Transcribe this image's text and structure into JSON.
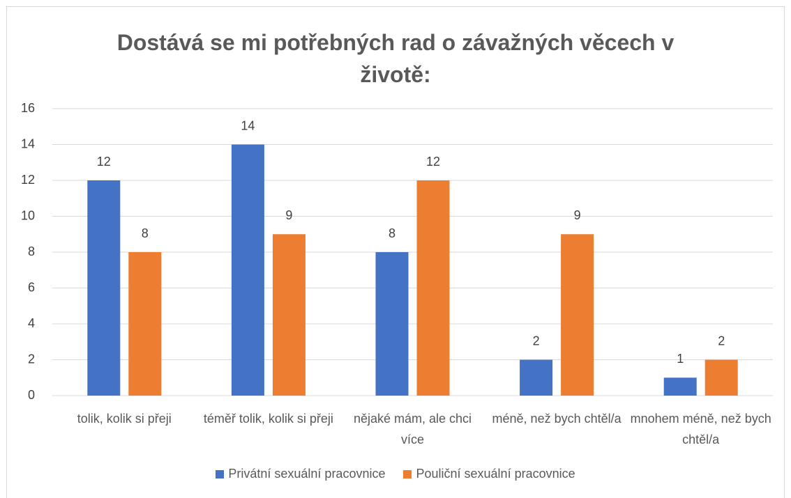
{
  "chart_data": {
    "type": "bar",
    "title": "Dostává se mi potřebných rad o závažných věcech v životě:",
    "categories": [
      "tolik, kolik si přeji",
      "téměř tolik, kolik si přeji",
      "nějaké mám, ale chci více",
      "méně, než bych chtěl/a",
      "mnohem méně, než bych chtěl/a"
    ],
    "series": [
      {
        "name": "Privátní sexuální pracovnice",
        "color": "#4472c4",
        "values": [
          12,
          14,
          8,
          2,
          1
        ]
      },
      {
        "name": "Pouliční sexuální pracovnice",
        "color": "#ed7d31",
        "values": [
          8,
          9,
          12,
          9,
          2
        ]
      }
    ],
    "ylim": [
      0,
      16
    ],
    "yticks": [
      0,
      2,
      4,
      6,
      8,
      10,
      12,
      14,
      16
    ],
    "grid": true,
    "legend": "bottom"
  }
}
